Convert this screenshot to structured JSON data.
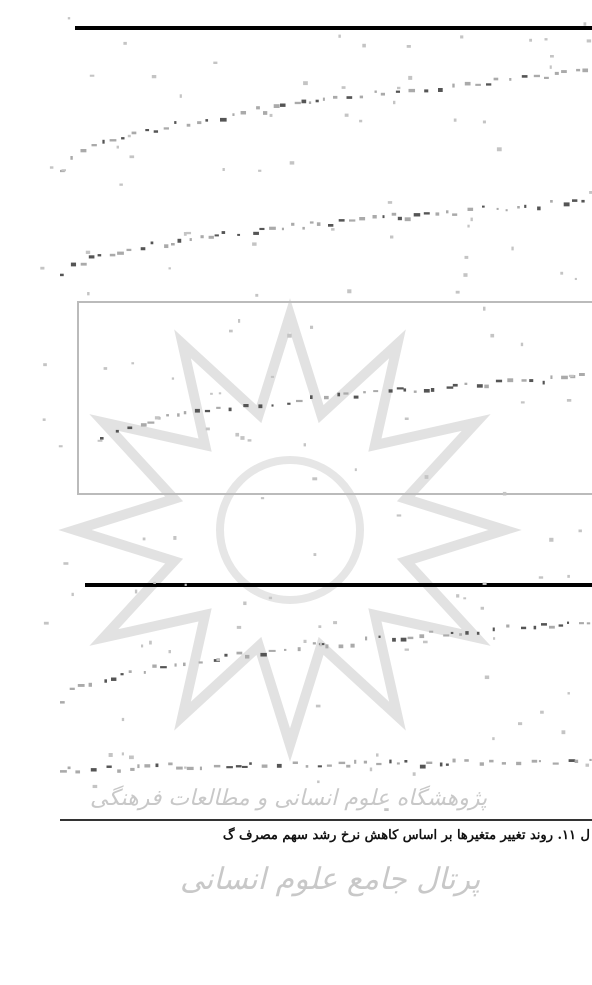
{
  "figure": {
    "caption": "ل ۱۱. روند تغییر متغیرها بر اساس کاهش نرخ رشد سهم مصرف گ"
  },
  "watermark": {
    "institute": "پژوهشگاه علوم انسانی و مطالعات فرهنگی",
    "portal": "پرتال جامع علوم انسانی"
  }
}
